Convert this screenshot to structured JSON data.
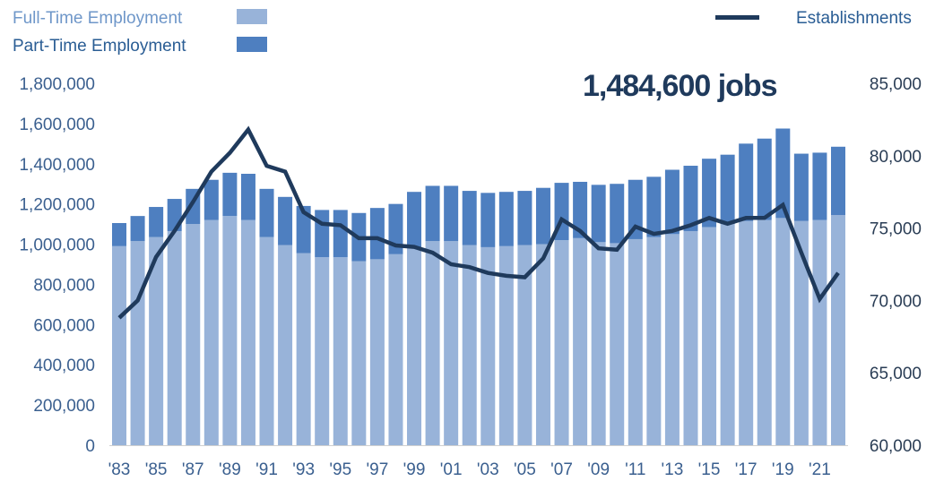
{
  "chart_data": {
    "type": "bar",
    "annotation": "1,484,600 jobs",
    "legend": {
      "full_time": "Full-Time Employment",
      "part_time": "Part-Time Employment",
      "establishments": "Establishments"
    },
    "years": [
      1983,
      1984,
      1985,
      1986,
      1987,
      1988,
      1989,
      1990,
      1991,
      1992,
      1993,
      1994,
      1995,
      1996,
      1997,
      1998,
      1999,
      2000,
      2001,
      2002,
      2003,
      2004,
      2005,
      2006,
      2007,
      2008,
      2009,
      2010,
      2011,
      2012,
      2013,
      2014,
      2015,
      2016,
      2017,
      2018,
      2019,
      2020,
      2021,
      2022
    ],
    "x_tick_labels": [
      "'83",
      "'85",
      "'87",
      "'89",
      "'91",
      "'93",
      "'95",
      "'97",
      "'99",
      "'01",
      "'03",
      "'05",
      "'07",
      "'09",
      "'11",
      "'13",
      "'15",
      "'17",
      "'19",
      "'21"
    ],
    "series": [
      {
        "name": "Full-Time Employment",
        "color": "#98b3d9",
        "axis": "left",
        "values": [
          990000,
          1015000,
          1035000,
          1065000,
          1100000,
          1120000,
          1140000,
          1120000,
          1035000,
          995000,
          955000,
          935000,
          935000,
          915000,
          925000,
          950000,
          985000,
          1015000,
          1015000,
          995000,
          985000,
          990000,
          995000,
          1000000,
          1020000,
          1030000,
          1010000,
          1005000,
          1025000,
          1035000,
          1050000,
          1065000,
          1085000,
          1100000,
          1115000,
          1120000,
          1130000,
          1115000,
          1120000,
          1145000
        ]
      },
      {
        "name": "Part-Time Employment",
        "color": "#4e7fc0",
        "axis": "left",
        "values": [
          115000,
          125000,
          150000,
          160000,
          175000,
          200000,
          215000,
          230000,
          240000,
          240000,
          235000,
          235000,
          235000,
          240000,
          255000,
          250000,
          275000,
          275000,
          275000,
          270000,
          270000,
          270000,
          270000,
          280000,
          285000,
          280000,
          285000,
          295000,
          295000,
          300000,
          320000,
          325000,
          340000,
          345000,
          385000,
          405000,
          445000,
          335000,
          335000,
          339600
        ]
      },
      {
        "name": "Establishments",
        "color": "#1f3a5c",
        "axis": "right",
        "values": [
          68800,
          70000,
          73000,
          74800,
          76800,
          78900,
          80200,
          81800,
          79300,
          78900,
          76100,
          75300,
          75200,
          74300,
          74300,
          73800,
          73700,
          73300,
          72500,
          72300,
          71900,
          71700,
          71600,
          72900,
          75600,
          74800,
          73600,
          73500,
          75100,
          74600,
          74800,
          75200,
          75700,
          75300,
          75700,
          75700,
          76600,
          73300,
          70100,
          71900
        ]
      }
    ],
    "y_left": {
      "min": 0,
      "max": 1800000,
      "ticks": [
        "0",
        "200,000",
        "400,000",
        "600,000",
        "800,000",
        "1,000,000",
        "1,200,000",
        "1,400,000",
        "1,600,000",
        "1,800,000"
      ]
    },
    "y_right": {
      "min": 60000,
      "max": 85000,
      "ticks": [
        "60,000",
        "65,000",
        "70,000",
        "75,000",
        "80,000",
        "85,000"
      ]
    },
    "colors": {
      "axis_text": "#3a5f8f",
      "annotation": "#1f3a5c",
      "full_time_legend_text": "#6f97c9",
      "part_time_legend_text": "#2a5d94",
      "establishments_legend_text": "#2a5d94",
      "right_axis_text": "#2a3d55"
    }
  }
}
